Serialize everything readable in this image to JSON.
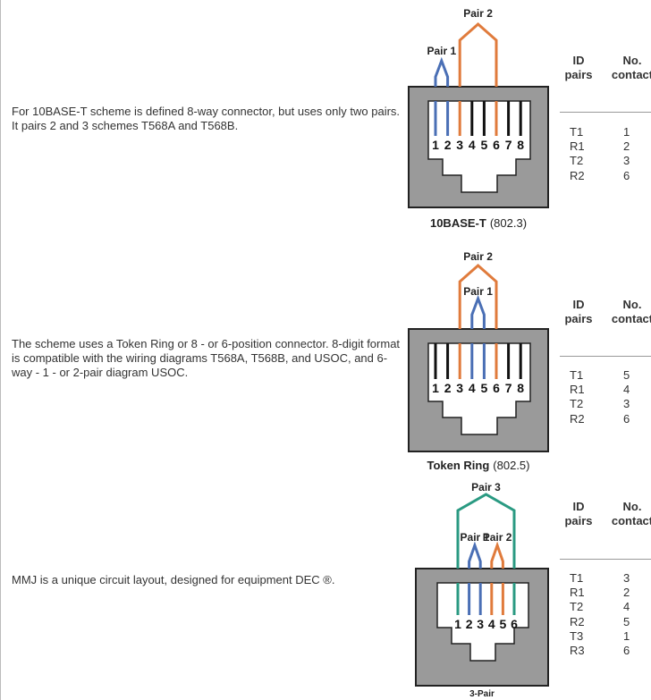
{
  "sections": [
    {
      "description": "For 10BASE-T scheme is defined 8-way connector, but uses only two pairs. It pairs 2 and 3 schemes T568A and T568B.",
      "pairs": [
        "Pair 1",
        "Pair 2"
      ],
      "pins": [
        "1",
        "2",
        "3",
        "4",
        "5",
        "6",
        "7",
        "8"
      ],
      "caption": {
        "name": "10BASE-T",
        "standard": "(802.3)"
      },
      "table": {
        "headers": [
          "ID pairs",
          "No. contact"
        ],
        "rows": [
          [
            "T1",
            "1"
          ],
          [
            "R1",
            "2"
          ],
          [
            "T2",
            "3"
          ],
          [
            "R2",
            "6"
          ]
        ]
      }
    },
    {
      "description": "The scheme uses a Token Ring or 8 - or 6-position connector. 8-digit format is compatible with the wiring diagrams T568A, T568B, and USOC, and 6-way - 1 - or 2-pair diagram USOC.",
      "pairs": [
        "Pair 2",
        "Pair 1"
      ],
      "pins": [
        "1",
        "2",
        "3",
        "4",
        "5",
        "6",
        "7",
        "8"
      ],
      "caption": {
        "name": "Token Ring",
        "standard": "(802.5)"
      },
      "table": {
        "headers": [
          "ID pairs",
          "No. contact"
        ],
        "rows": [
          [
            "T1",
            "5"
          ],
          [
            "R1",
            "4"
          ],
          [
            "T2",
            "3"
          ],
          [
            "R2",
            "6"
          ]
        ]
      }
    },
    {
      "description": "MMJ is a unique circuit layout, designed for equipment DEC ®.",
      "pairs": [
        "Pair 3",
        "Pair 1",
        "Pair 2"
      ],
      "pins": [
        "1",
        "2",
        "3",
        "4",
        "5",
        "6"
      ],
      "caption": {
        "name": "3-Pair"
      },
      "table": {
        "headers": [
          "ID pairs",
          "No. contact"
        ],
        "rows": [
          [
            "T1",
            "3"
          ],
          [
            "R1",
            "2"
          ],
          [
            "T2",
            "4"
          ],
          [
            "R2",
            "5"
          ],
          [
            "T3",
            "1"
          ],
          [
            "R3",
            "6"
          ]
        ]
      }
    }
  ]
}
